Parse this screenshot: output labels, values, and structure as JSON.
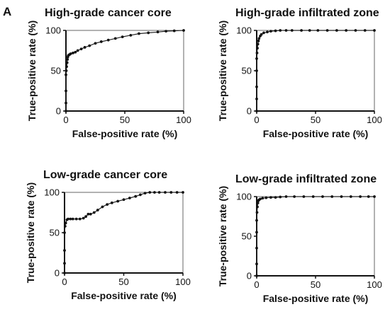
{
  "figure": {
    "panel_letter": "A"
  },
  "chart_data": [
    {
      "type": "line",
      "title": "High-grade cancer core",
      "xlabel": "False-positive rate (%)",
      "ylabel": "True-positive rate (%)",
      "xlim": [
        0,
        100
      ],
      "ylim": [
        0,
        100
      ],
      "xticks": [
        "0",
        "50",
        "100"
      ],
      "yticks": [
        "0",
        "50",
        "100"
      ],
      "series": [
        {
          "x": [
            0,
            0,
            0,
            0,
            0.3,
            0.6,
            1,
            1.3,
            1.6,
            2,
            3,
            4,
            6,
            8,
            10,
            13,
            16,
            20,
            25,
            30,
            36,
            42,
            48,
            55,
            62,
            70,
            78,
            85,
            92,
            100
          ],
          "y": [
            0,
            10,
            25,
            45,
            50,
            55,
            60,
            64,
            67,
            69,
            70,
            71,
            72,
            73,
            75,
            77,
            79,
            81,
            84,
            86,
            88,
            90,
            92,
            94,
            96,
            97,
            98,
            99,
            99.5,
            100
          ]
        }
      ]
    },
    {
      "type": "line",
      "title": "High-grade infiltrated zone",
      "xlabel": "False-positive rate (%)",
      "ylabel": "True-positive rate (%)",
      "xlim": [
        0,
        100
      ],
      "ylim": [
        0,
        100
      ],
      "xticks": [
        "0",
        "50",
        "100"
      ],
      "yticks": [
        "0",
        "50",
        "100"
      ],
      "series": [
        {
          "x": [
            0,
            0,
            0,
            0,
            0,
            0.3,
            0.6,
            1,
            1.5,
            2,
            3,
            4,
            6,
            9,
            12,
            16,
            20,
            25,
            30,
            38,
            45,
            52,
            60,
            68,
            76,
            84,
            92,
            100
          ],
          "y": [
            0,
            15,
            30,
            50,
            65,
            72,
            78,
            83,
            87,
            90,
            93,
            95,
            97,
            98,
            99,
            99.5,
            100,
            100,
            100,
            100,
            100,
            100,
            100,
            100,
            100,
            100,
            100,
            100
          ]
        }
      ]
    },
    {
      "type": "line",
      "title": "Low-grade cancer core",
      "xlabel": "False-positive rate (%)",
      "ylabel": "True-positive rate (%)",
      "xlim": [
        0,
        100
      ],
      "ylim": [
        0,
        100
      ],
      "xticks": [
        "0",
        "50",
        "100"
      ],
      "yticks": [
        "0",
        "50",
        "100"
      ],
      "series": [
        {
          "x": [
            0,
            0,
            0,
            0,
            0.5,
            1,
            2,
            3,
            5,
            7,
            10,
            13,
            16,
            18,
            20,
            22,
            25,
            28,
            32,
            36,
            40,
            45,
            50,
            55,
            60,
            64,
            68,
            72,
            76,
            80,
            85,
            90,
            95,
            100
          ],
          "y": [
            0,
            12,
            28,
            50,
            58,
            62,
            66,
            67,
            67,
            67,
            67,
            67,
            68,
            70,
            73,
            73,
            75,
            78,
            82,
            85,
            87,
            89,
            91,
            93,
            95,
            97,
            99,
            100,
            100,
            100,
            100,
            100,
            100,
            100
          ]
        }
      ]
    },
    {
      "type": "line",
      "title": "Low-grade infiltrated zone",
      "xlabel": "False-positive rate (%)",
      "ylabel": "True-positive rate (%)",
      "xlim": [
        0,
        100
      ],
      "ylim": [
        0,
        100
      ],
      "xticks": [
        "0",
        "50",
        "100"
      ],
      "yticks": [
        "0",
        "50",
        "100"
      ],
      "series": [
        {
          "x": [
            0,
            0,
            0,
            0,
            0,
            0.3,
            0.6,
            1,
            1.5,
            2,
            3,
            5,
            8,
            12,
            16,
            20,
            25,
            32,
            40,
            48,
            56,
            64,
            72,
            80,
            88,
            95,
            100
          ],
          "y": [
            0,
            15,
            35,
            55,
            70,
            80,
            87,
            92,
            95,
            96,
            97,
            98,
            98.5,
            99,
            99,
            99.5,
            100,
            100,
            100,
            100,
            100,
            100,
            100,
            100,
            100,
            100,
            100
          ]
        }
      ]
    }
  ]
}
